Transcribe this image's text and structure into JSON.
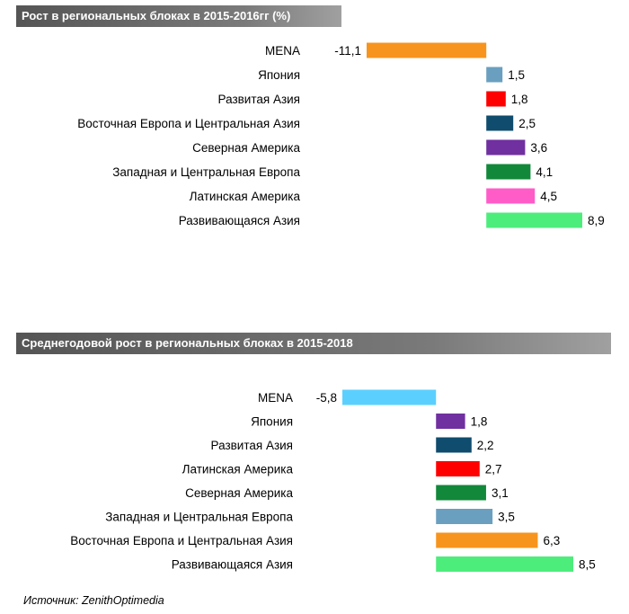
{
  "chart_data": [
    {
      "type": "bar",
      "orientation": "horizontal",
      "title": "Рост в региональных блоках в 2015-2016гг (%)",
      "categories": [
        "MENA",
        "Япония",
        "Развитая Азия",
        "Восточная Европа и Центральная Азия",
        "Северная Америка",
        "Западная и Центральная Европа",
        "Латинская Америка",
        "Развивающаяся Азия"
      ],
      "values": [
        -11.1,
        1.5,
        1.8,
        2.5,
        3.6,
        4.1,
        4.5,
        8.9
      ],
      "value_labels": [
        "-11,1",
        "1,5",
        "1,8",
        "2,5",
        "3,6",
        "4,1",
        "4,5",
        "8,9"
      ],
      "colors": [
        "#f7941d",
        "#6a9fc0",
        "#ff0000",
        "#0f4c6e",
        "#7030a0",
        "#12883a",
        "#ff5cc8",
        "#4ded7c"
      ],
      "xlim": [
        -11.1,
        8.9
      ]
    },
    {
      "type": "bar",
      "orientation": "horizontal",
      "title": "Среднегодовой рост в региональных блоках в 2015-2018",
      "categories": [
        "MENA",
        "Япония",
        "Развитая Азия",
        "Латинская Америка",
        "Северная Америка",
        "Западная и Центральная Европа",
        "Восточная Европа и Центральная Азия",
        "Развивающаяся Азия"
      ],
      "values": [
        -5.8,
        1.8,
        2.2,
        2.7,
        3.1,
        3.5,
        6.3,
        8.5
      ],
      "value_labels": [
        "-5,8",
        "1,8",
        "2,2",
        "2,7",
        "3,1",
        "3,5",
        "6,3",
        "8,5"
      ],
      "colors": [
        "#5bd0ff",
        "#7030a0",
        "#0f4c6e",
        "#ff0000",
        "#12883a",
        "#6a9fc0",
        "#f7941d",
        "#4ded7c"
      ],
      "xlim": [
        -5.8,
        8.5
      ]
    }
  ],
  "source": "Источник: ZenithOptimedia"
}
